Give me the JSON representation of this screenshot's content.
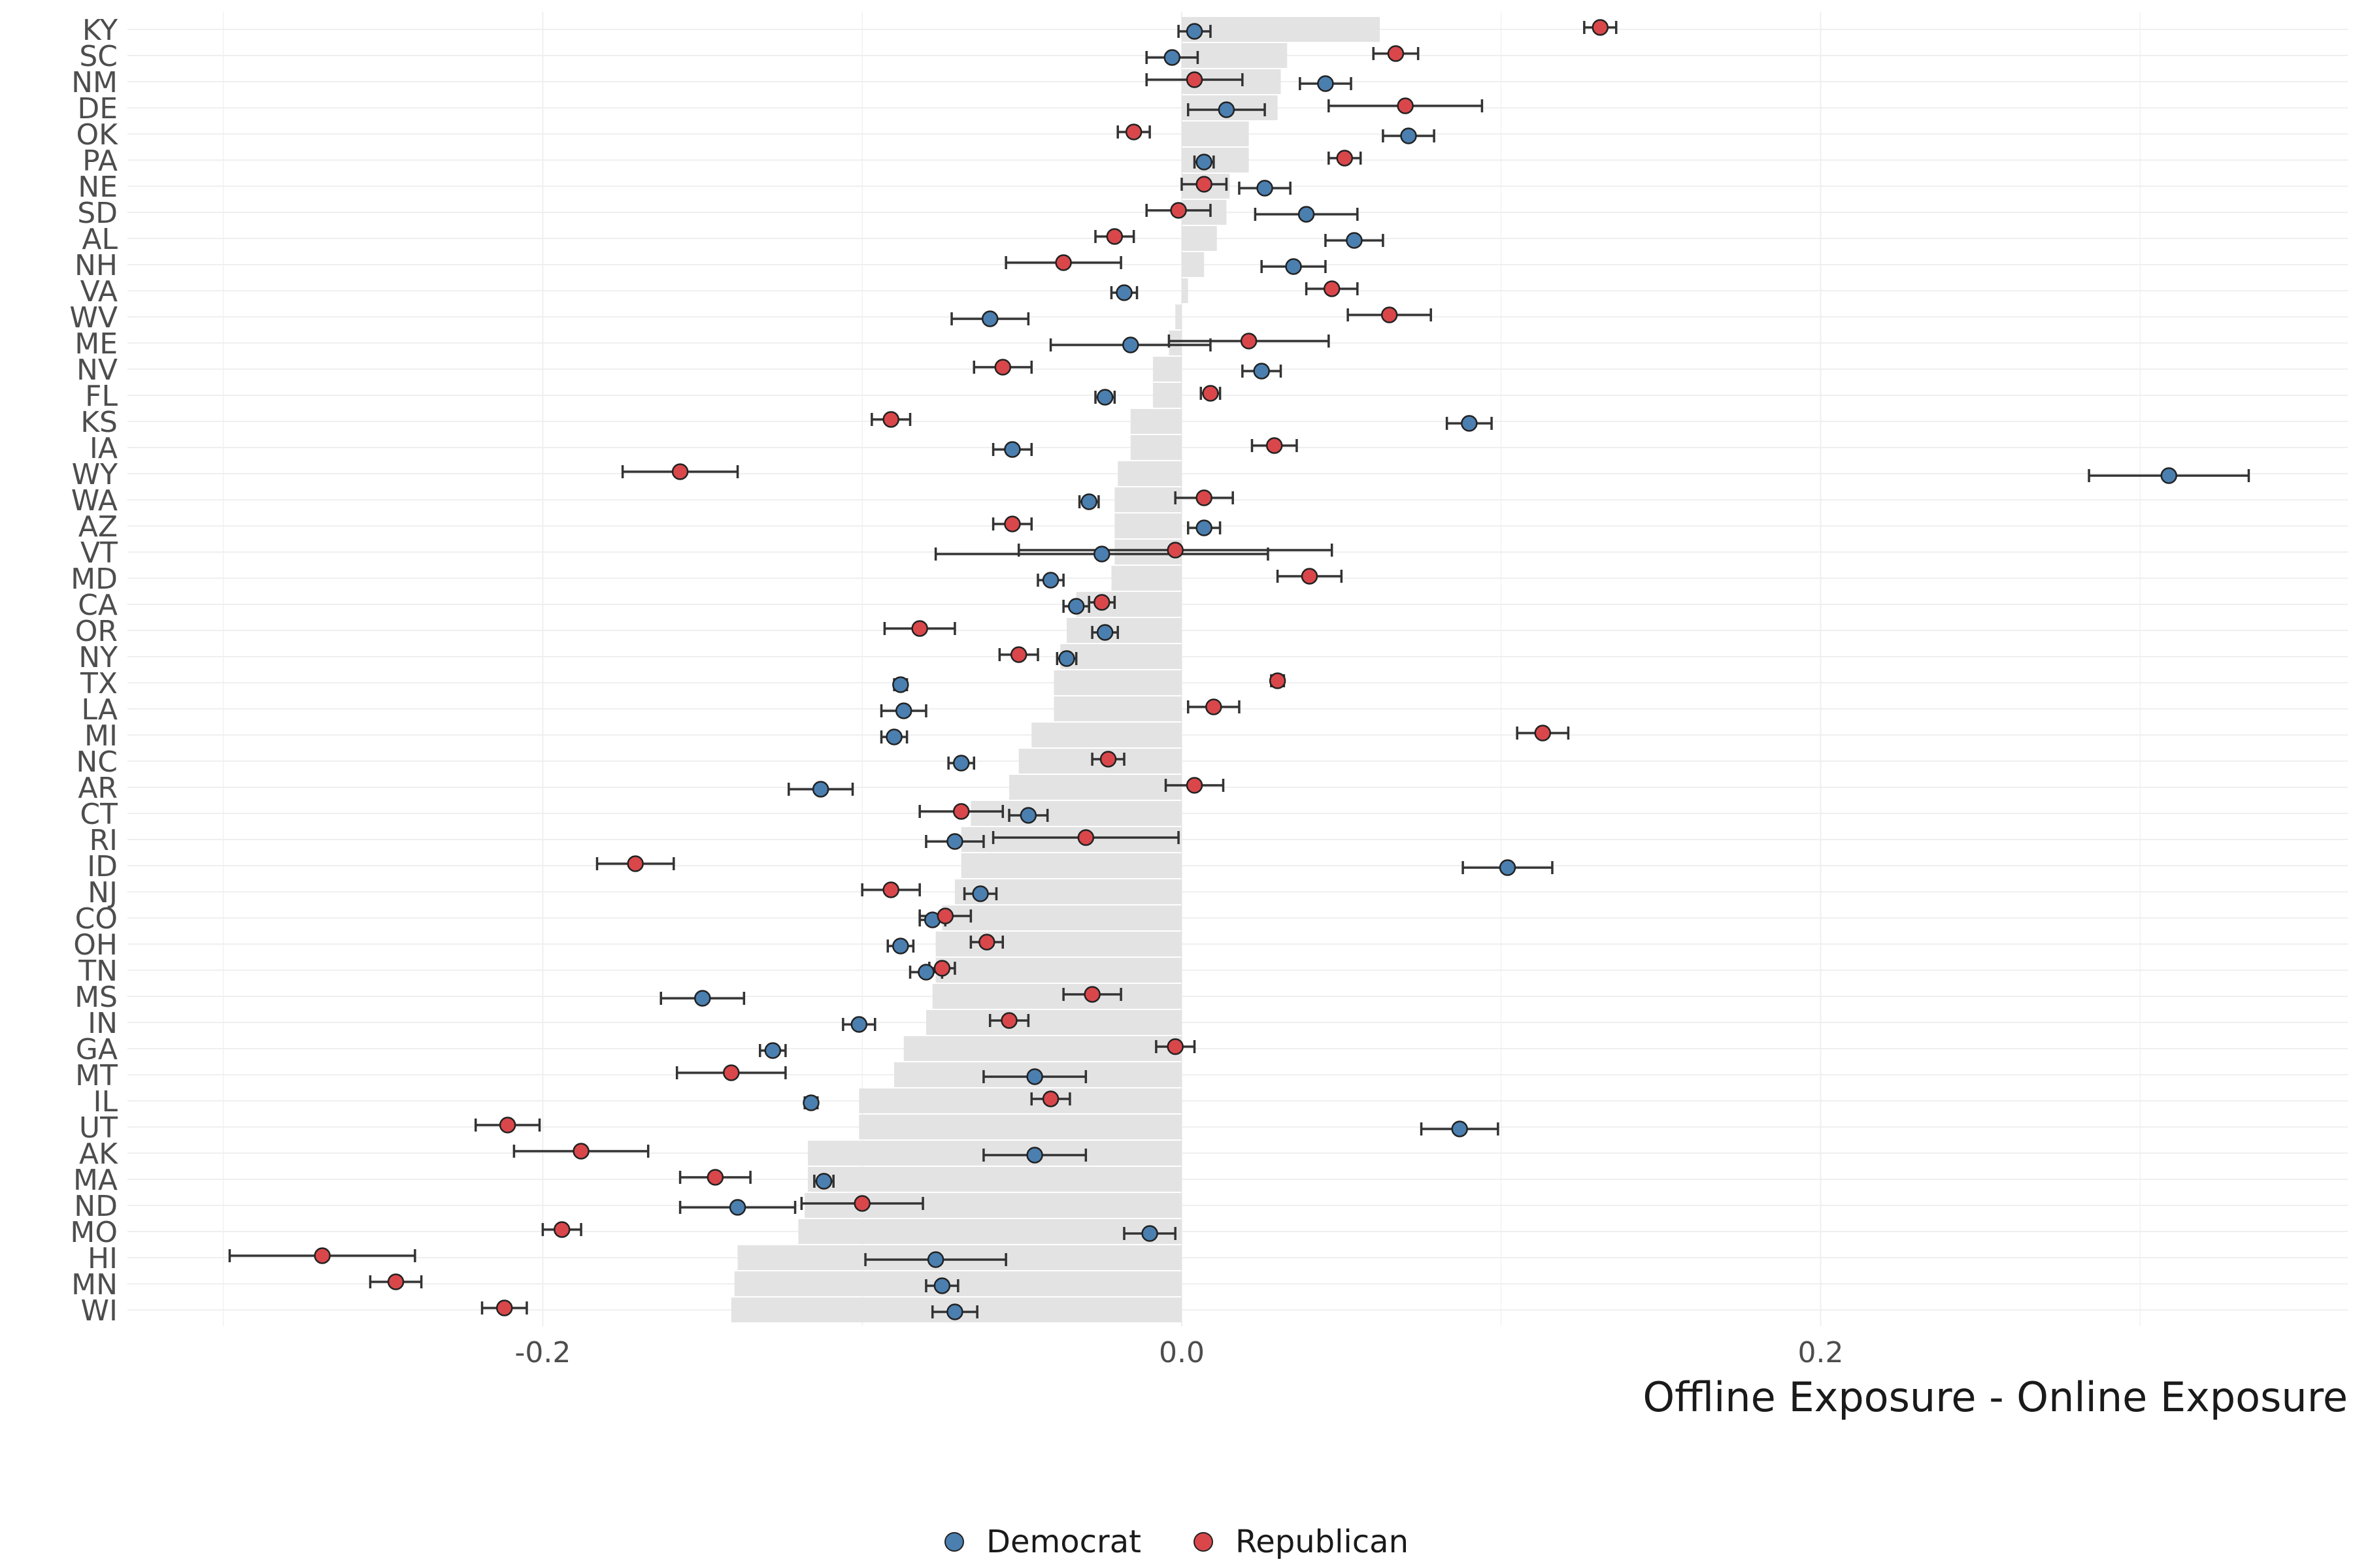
{
  "chart_data": {
    "type": "scatter",
    "xlabel": "Offline Exposure - Online Exposure",
    "ylabel": "",
    "xlim": [
      -0.33,
      0.365
    ],
    "x_ticks": [
      -0.2,
      0.0,
      0.2
    ],
    "x_tick_labels": [
      "-0.2",
      "0.0",
      "0.2"
    ],
    "grid": true,
    "legend_position": "bottom",
    "categories": [
      "KY",
      "SC",
      "NM",
      "DE",
      "OK",
      "PA",
      "NE",
      "SD",
      "AL",
      "NH",
      "VA",
      "WV",
      "ME",
      "NV",
      "FL",
      "KS",
      "IA",
      "WY",
      "WA",
      "AZ",
      "VT",
      "MD",
      "CA",
      "OR",
      "NY",
      "TX",
      "LA",
      "MI",
      "NC",
      "AR",
      "CT",
      "RI",
      "ID",
      "NJ",
      "CO",
      "OH",
      "TN",
      "MS",
      "IN",
      "GA",
      "MT",
      "IL",
      "UT",
      "AK",
      "MA",
      "ND",
      "MO",
      "HI",
      "MN",
      "WI"
    ],
    "bar_values": [
      0.062,
      0.033,
      0.031,
      0.03,
      0.021,
      0.021,
      0.015,
      0.014,
      0.011,
      0.007,
      0.002,
      -0.002,
      -0.004,
      -0.009,
      -0.009,
      -0.016,
      -0.016,
      -0.02,
      -0.021,
      -0.021,
      -0.021,
      -0.022,
      -0.033,
      -0.036,
      -0.038,
      -0.04,
      -0.04,
      -0.047,
      -0.051,
      -0.054,
      -0.066,
      -0.069,
      -0.069,
      -0.071,
      -0.075,
      -0.077,
      -0.077,
      -0.078,
      -0.08,
      -0.087,
      -0.09,
      -0.101,
      -0.101,
      -0.117,
      -0.117,
      -0.118,
      -0.12,
      -0.139,
      -0.14,
      -0.141
    ],
    "series": [
      {
        "name": "Democrat",
        "color": "#4a7fb0",
        "values": [
          0.004,
          -0.003,
          0.045,
          0.014,
          0.071,
          0.007,
          0.026,
          0.039,
          0.054,
          0.035,
          -0.018,
          -0.06,
          -0.016,
          0.025,
          -0.024,
          0.09,
          -0.053,
          0.309,
          -0.029,
          0.007,
          -0.025,
          -0.041,
          -0.033,
          -0.024,
          -0.036,
          -0.088,
          -0.087,
          -0.09,
          -0.069,
          -0.113,
          -0.048,
          -0.071,
          0.102,
          -0.063,
          -0.078,
          -0.088,
          -0.08,
          -0.15,
          -0.101,
          -0.128,
          -0.046,
          -0.116,
          0.087,
          -0.046,
          -0.112,
          -0.139,
          -0.01,
          -0.077,
          -0.075,
          -0.071
        ],
        "errors": [
          0.005,
          0.008,
          0.008,
          0.012,
          0.008,
          0.003,
          0.008,
          0.016,
          0.009,
          0.01,
          0.004,
          0.012,
          0.025,
          0.006,
          0.003,
          0.007,
          0.006,
          0.025,
          0.003,
          0.005,
          0.052,
          0.004,
          0.004,
          0.004,
          0.003,
          0.002,
          0.007,
          0.004,
          0.004,
          0.01,
          0.006,
          0.009,
          0.014,
          0.005,
          0.004,
          0.004,
          0.005,
          0.013,
          0.005,
          0.004,
          0.016,
          0.002,
          0.012,
          0.016,
          0.003,
          0.018,
          0.008,
          0.022,
          0.005,
          0.007
        ]
      },
      {
        "name": "Republican",
        "color": "#d9474b",
        "values": [
          0.131,
          0.067,
          0.004,
          0.07,
          -0.015,
          0.051,
          0.007,
          -0.001,
          -0.021,
          -0.037,
          0.047,
          0.065,
          0.021,
          -0.056,
          0.009,
          -0.091,
          0.029,
          -0.157,
          0.007,
          -0.053,
          -0.002,
          0.04,
          -0.025,
          -0.082,
          -0.051,
          0.03,
          0.01,
          0.113,
          -0.023,
          0.004,
          -0.069,
          -0.03,
          -0.171,
          -0.091,
          -0.074,
          -0.061,
          -0.075,
          -0.028,
          -0.054,
          -0.002,
          -0.141,
          -0.041,
          -0.211,
          -0.188,
          -0.146,
          -0.1,
          -0.194,
          -0.269,
          -0.246,
          -0.212
        ],
        "errors": [
          0.005,
          0.007,
          0.015,
          0.024,
          0.005,
          0.005,
          0.007,
          0.01,
          0.006,
          0.018,
          0.008,
          0.013,
          0.025,
          0.009,
          0.003,
          0.006,
          0.007,
          0.018,
          0.009,
          0.006,
          0.049,
          0.01,
          0.004,
          0.011,
          0.006,
          0.002,
          0.008,
          0.008,
          0.005,
          0.009,
          0.013,
          0.029,
          0.012,
          0.009,
          0.008,
          0.005,
          0.004,
          0.009,
          0.006,
          0.006,
          0.017,
          0.006,
          0.01,
          0.021,
          0.011,
          0.019,
          0.006,
          0.029,
          0.008,
          0.007
        ]
      }
    ]
  },
  "legend": {
    "items": [
      {
        "label": "Democrat",
        "color": "#4a7fb0"
      },
      {
        "label": "Republican",
        "color": "#d9474b"
      }
    ]
  },
  "colors": {
    "bar": "#e3e3e3",
    "grid": "#efefef",
    "errorbar": "#333333",
    "point_outline": "#222222",
    "tick_text": "#4d4d4d",
    "axis_title": "#1a1a1a"
  }
}
